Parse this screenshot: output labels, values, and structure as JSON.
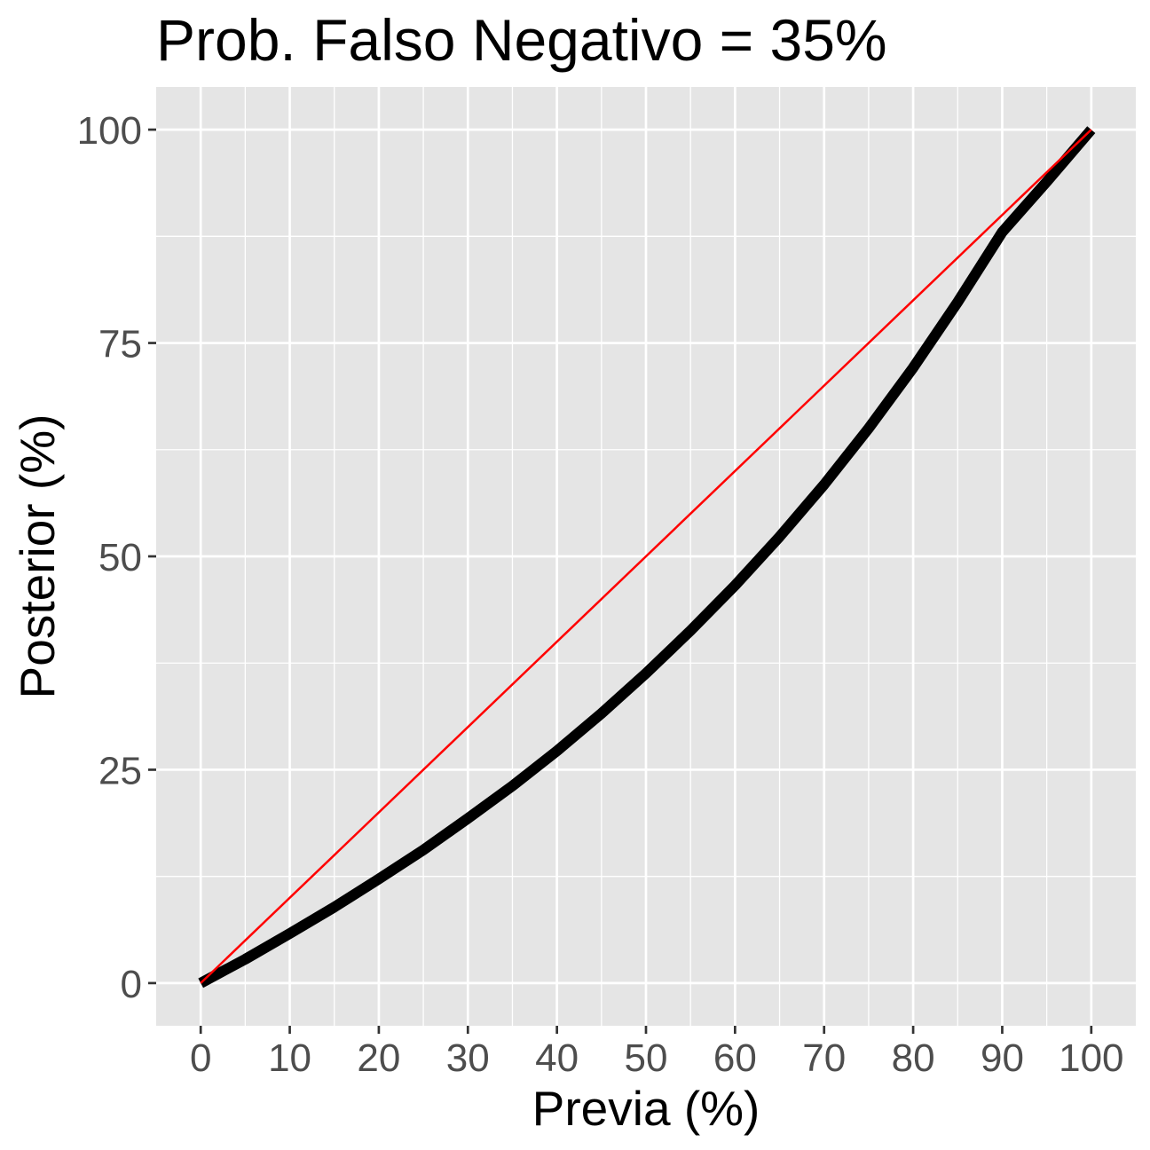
{
  "chart_data": {
    "type": "line",
    "title": "Prob. Falso Negativo = 35%",
    "xlabel": "Previa (%)",
    "ylabel": "Posterior (%)",
    "xlim": [
      -5,
      105
    ],
    "ylim": [
      -5,
      105
    ],
    "x_ticks": [
      0,
      10,
      20,
      30,
      40,
      50,
      60,
      70,
      80,
      90,
      100
    ],
    "y_ticks": [
      0,
      25,
      50,
      75,
      100
    ],
    "x_tick_labels": [
      "0",
      "10",
      "20",
      "30",
      "40",
      "50",
      "60",
      "70",
      "80",
      "90",
      "100"
    ],
    "y_tick_labels": [
      "0",
      "25",
      "50",
      "75",
      "100"
    ],
    "grid": true,
    "legend": "none",
    "colors": {
      "panel": "#e5e5e5",
      "grid": "#ffffff",
      "posterior_line": "#000000",
      "identity_line": "#ff0000"
    },
    "series": [
      {
        "x": [
          0,
          5,
          10,
          15,
          20,
          25,
          30,
          35,
          40,
          45,
          50,
          55,
          60,
          65,
          70,
          75,
          80,
          85,
          90,
          95,
          100
        ],
        "y": [
          0,
          2.8,
          5.8,
          8.9,
          12.2,
          15.6,
          19.3,
          23.1,
          27.2,
          31.6,
          36.3,
          41.3,
          46.6,
          52.3,
          58.4,
          65.0,
          72.1,
          79.8,
          88.0,
          93.9,
          100
        ]
      },
      {
        "x": [
          0,
          100
        ],
        "y": [
          0,
          100
        ]
      }
    ]
  }
}
